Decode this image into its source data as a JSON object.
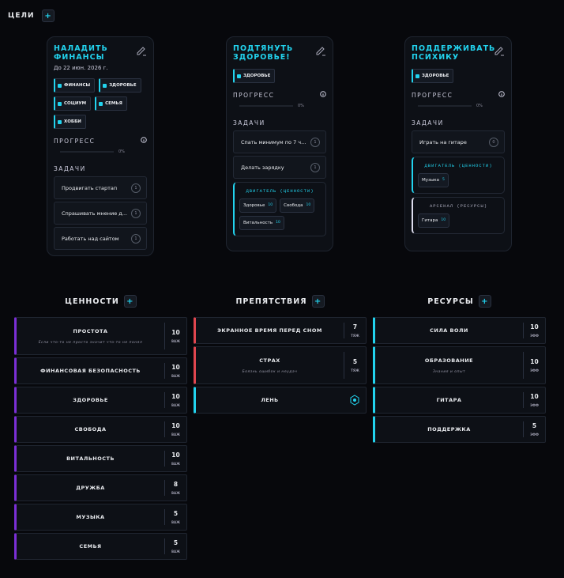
{
  "header": {
    "title": "ЦЕЛИ",
    "add": "+"
  },
  "goals": [
    {
      "title": "НАЛАДИТЬ ФИНАНСЫ",
      "date": "До 22 июн. 2026 г.",
      "tags": [
        "ФИНАНСЫ",
        "ЗДОРОВЬЕ",
        "СОЦИУМ",
        "СЕМЬЯ",
        "ХОББИ"
      ],
      "progress_label": "ПРОГРЕСС",
      "progress": "0%",
      "tasks_label": "ЗАДАЧИ",
      "tasks": [
        {
          "text": "Продвигать стартап",
          "count": 1
        },
        {
          "text": "Спрашивать мнение д...",
          "count": 1
        },
        {
          "text": "Работать над сайтом",
          "count": 1
        }
      ],
      "groups": []
    },
    {
      "title": "ПОДТЯНУТЬ ЗДОРОВЬЕ!",
      "tags": [
        "ЗДОРОВЬЕ"
      ],
      "progress_label": "ПРОГРЕСС",
      "progress": "0%",
      "tasks_label": "ЗАДАЧИ",
      "tasks": [
        {
          "text": "Спать минимум по 7 ч...",
          "count": 1
        },
        {
          "text": "Делать зарядку",
          "count": 1
        }
      ],
      "groups": [
        {
          "title": "ДВИГАТЕЛЬ (ЦЕННОСТИ)",
          "chips": [
            {
              "name": "Здоровье",
              "value": 10
            },
            {
              "name": "Свобода",
              "value": 10
            },
            {
              "name": "Витальность",
              "value": 10
            }
          ]
        }
      ]
    },
    {
      "title": "ПОДДЕРЖИВАТЬ ПСИХИКУ",
      "tags": [
        "ЗДОРОВЬЕ"
      ],
      "progress_label": "ПРОГРЕСС",
      "progress": "0%",
      "tasks_label": "ЗАДАЧИ",
      "tasks": [
        {
          "text": "Играть на гитаре",
          "count": 0
        }
      ],
      "groups": [
        {
          "title": "ДВИГАТЕЛЬ (ЦЕННОСТИ)",
          "chips": [
            {
              "name": "Музыка",
              "value": 5
            }
          ]
        },
        {
          "title": "АРСЕНАЛ (РЕСУРСЫ)",
          "chips": [
            {
              "name": "Гитара",
              "value": 10
            }
          ]
        }
      ]
    }
  ],
  "columns": [
    {
      "title": "ЦЕННОСТИ",
      "add": "+",
      "unit": "ВАЖ",
      "color": "#7b2fd6",
      "items": [
        {
          "name": "ПРОСТОТА",
          "note": "Если что-то не просто значит что-то не понял",
          "value": 10
        },
        {
          "name": "ФИНАНСОВАЯ БЕЗОПАСНОСТЬ",
          "value": 10
        },
        {
          "name": "ЗДОРОВЬЕ",
          "value": 10
        },
        {
          "name": "СВОБОДА",
          "value": 10
        },
        {
          "name": "ВИТАЛЬНОСТЬ",
          "value": 10
        },
        {
          "name": "ДРУЖБА",
          "value": 8
        },
        {
          "name": "МУЗЫКА",
          "value": 5
        },
        {
          "name": "СЕМЬЯ",
          "value": 5
        }
      ]
    },
    {
      "title": "ПРЕПЯТСТВИЯ",
      "add": "+",
      "unit": "ТЯЖ",
      "color": "#e0464f",
      "items": [
        {
          "name": "ЭКРАННОЕ ВРЕМЯ ПЕРЕД СНОМ",
          "value": 7
        },
        {
          "name": "СТРАХ",
          "note": "Боязнь ошибок и неудач",
          "value": 5
        },
        {
          "name": "ЛЕНЬ",
          "color": "#22d3ee"
        }
      ]
    },
    {
      "title": "РЕСУРСЫ",
      "add": "+",
      "unit": "ЭФФ",
      "color": "#22d3ee",
      "items": [
        {
          "name": "СИЛА ВОЛИ",
          "value": 10
        },
        {
          "name": "ОБРАЗОВАНИЕ",
          "note": "Знания и опыт",
          "value": 10
        },
        {
          "name": "ГИТАРА",
          "value": 10
        },
        {
          "name": "ПОДДЕРЖКА",
          "value": 5
        }
      ]
    }
  ]
}
